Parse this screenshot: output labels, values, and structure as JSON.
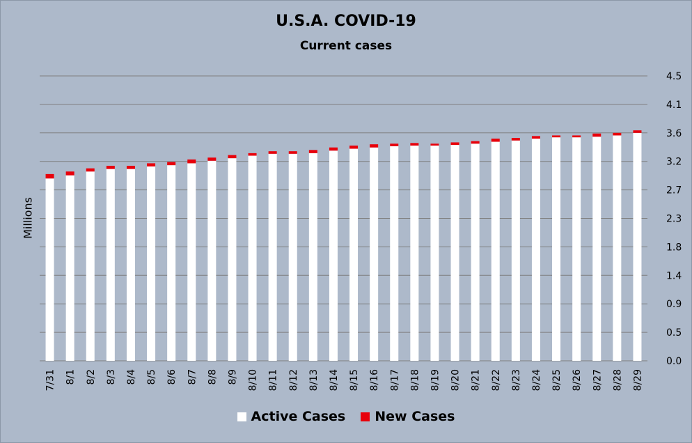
{
  "chart_data": {
    "type": "bar",
    "stacked": true,
    "title": "U.S.A. COVID-19",
    "subtitle": "Current cases",
    "ylabel": "Millions",
    "xlabel": "",
    "y_axis_side": "right",
    "ylim": [
      0,
      4.5
    ],
    "y_ticks": [
      "0.0",
      "0.5",
      "0.9",
      "1.4",
      "1.8",
      "2.3",
      "2.7",
      "3.2",
      "3.6",
      "4.1",
      "4.5"
    ],
    "grid": true,
    "legend_position": "bottom",
    "categories": [
      "7/31",
      "8/1",
      "8/2",
      "8/3",
      "8/4",
      "8/5",
      "8/6",
      "8/7",
      "8/8",
      "8/9",
      "8/10",
      "8/11",
      "8/12",
      "8/13",
      "8/14",
      "8/15",
      "8/16",
      "8/17",
      "8/18",
      "8/19",
      "8/20",
      "8/21",
      "8/22",
      "8/23",
      "8/24",
      "8/25",
      "8/26",
      "8/27",
      "8/28",
      "8/29"
    ],
    "series": [
      {
        "name": "Active Cases",
        "color": "#ffffff",
        "values": [
          2.88,
          2.93,
          2.99,
          3.03,
          3.03,
          3.07,
          3.09,
          3.12,
          3.16,
          3.2,
          3.24,
          3.27,
          3.27,
          3.28,
          3.32,
          3.35,
          3.37,
          3.39,
          3.4,
          3.4,
          3.41,
          3.43,
          3.46,
          3.48,
          3.51,
          3.53,
          3.53,
          3.54,
          3.56,
          3.6
        ]
      },
      {
        "name": "New Cases",
        "color": "#e8000b",
        "values": [
          0.07,
          0.06,
          0.05,
          0.05,
          0.05,
          0.05,
          0.05,
          0.06,
          0.05,
          0.05,
          0.04,
          0.04,
          0.04,
          0.05,
          0.05,
          0.05,
          0.05,
          0.04,
          0.04,
          0.03,
          0.04,
          0.04,
          0.05,
          0.04,
          0.04,
          0.03,
          0.03,
          0.05,
          0.04,
          0.04
        ]
      }
    ]
  }
}
